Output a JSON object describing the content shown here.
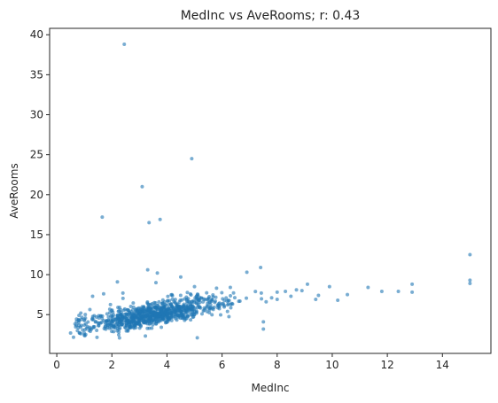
{
  "chart_data": {
    "type": "scatter",
    "title": "MedInc vs AveRooms; r: 0.43",
    "xlabel": "MedInc",
    "ylabel": "AveRooms",
    "xlim": [
      -0.26,
      15.76
    ],
    "ylim": [
      0.15,
      40.8
    ],
    "xticks": [
      0,
      2,
      4,
      6,
      8,
      10,
      12,
      14
    ],
    "yticks": [
      5,
      10,
      15,
      20,
      25,
      30,
      35,
      40
    ],
    "grid": false,
    "colors": {
      "points": "#1f77b4",
      "axes": "#262626",
      "background": "#ffffff"
    },
    "series": [
      {
        "points": [
          [
            2.45,
            38.8
          ],
          [
            4.9,
            24.5
          ],
          [
            3.1,
            21.0
          ],
          [
            1.65,
            17.2
          ],
          [
            3.35,
            16.5
          ],
          [
            3.75,
            16.9
          ],
          [
            15.0,
            12.5
          ],
          [
            15.0,
            9.3
          ],
          [
            15.0,
            8.9
          ],
          [
            12.9,
            8.8
          ],
          [
            12.9,
            7.8
          ],
          [
            12.4,
            7.9
          ],
          [
            11.8,
            7.9
          ],
          [
            11.3,
            8.4
          ],
          [
            10.55,
            7.5
          ],
          [
            10.2,
            6.8
          ],
          [
            9.9,
            8.5
          ],
          [
            9.5,
            7.4
          ],
          [
            9.4,
            6.9
          ],
          [
            9.1,
            8.8
          ],
          [
            8.9,
            8.0
          ],
          [
            8.7,
            8.1
          ],
          [
            8.5,
            7.3
          ],
          [
            8.3,
            7.9
          ],
          [
            8.0,
            7.8
          ],
          [
            8.0,
            6.9
          ],
          [
            7.8,
            7.1
          ],
          [
            7.6,
            6.6
          ],
          [
            7.4,
            10.9
          ],
          [
            7.5,
            3.2
          ],
          [
            7.5,
            4.1
          ],
          [
            6.9,
            10.3
          ],
          [
            3.3,
            10.6
          ],
          [
            3.65,
            10.2
          ],
          [
            4.5,
            9.7
          ],
          [
            2.2,
            9.1
          ],
          [
            3.6,
            9.0
          ],
          [
            1.3,
            7.3
          ],
          [
            1.7,
            7.6
          ],
          [
            2.4,
            7.7
          ],
          [
            5.0,
            8.5
          ],
          [
            5.8,
            8.3
          ],
          [
            6.3,
            8.4
          ],
          [
            5.1,
            2.1
          ],
          [
            0.5,
            2.7
          ],
          [
            0.75,
            3.0
          ],
          [
            0.8,
            4.3
          ],
          [
            1.0,
            3.7
          ],
          [
            1.2,
            3.4
          ],
          [
            1.05,
            2.5
          ]
        ]
      }
    ]
  }
}
